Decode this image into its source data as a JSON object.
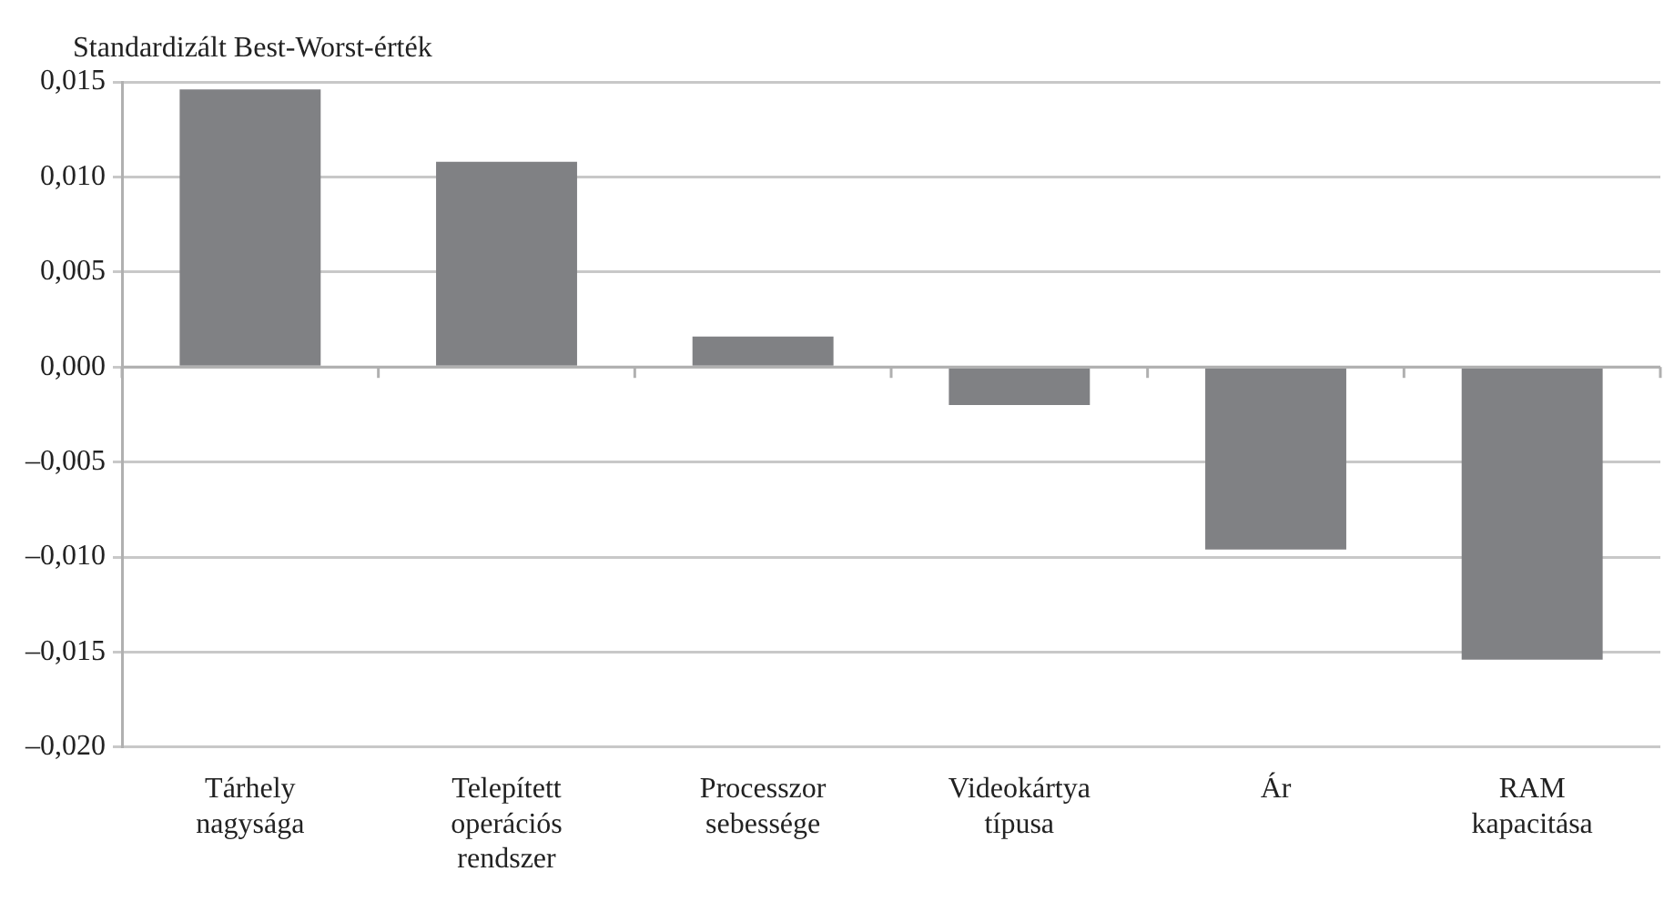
{
  "chart_data": {
    "type": "bar",
    "ylabel": "Standardizált Best-Worst-érték",
    "categories": [
      "Tárhely nagysága",
      "Telepített operációs rendszer",
      "Processzor sebessége",
      "Videokártya típusa",
      "Ár",
      "RAM kapacitása"
    ],
    "values": [
      0.0146,
      0.0108,
      0.0016,
      -0.002,
      -0.0096,
      -0.0154
    ],
    "color": "#808184",
    "ylim": [
      -0.02,
      0.015
    ],
    "yticks": [
      {
        "value": -0.02,
        "label": "–0,020"
      },
      {
        "value": -0.015,
        "label": "–0,015"
      },
      {
        "value": -0.01,
        "label": "–0,010"
      },
      {
        "value": -0.005,
        "label": "–0,005"
      },
      {
        "value": 0,
        "label": "0,000"
      },
      {
        "value": 0.005,
        "label": "0,005"
      },
      {
        "value": 0.01,
        "label": "0,010"
      },
      {
        "value": 0.015,
        "label": "0,015"
      }
    ],
    "grid": "y",
    "legend": false
  }
}
